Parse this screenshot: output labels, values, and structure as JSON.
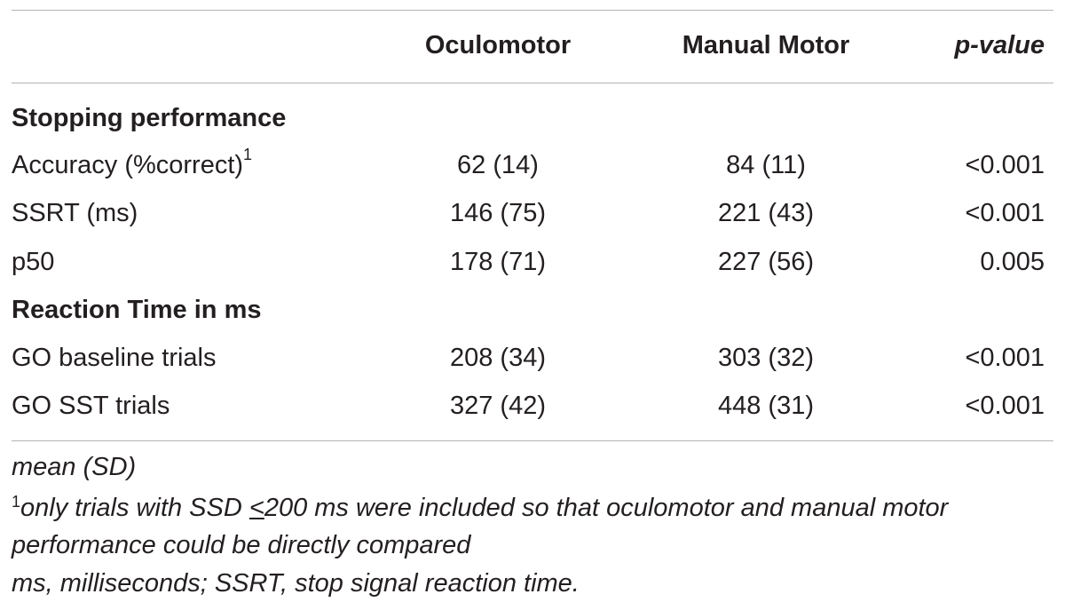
{
  "table": {
    "headers": {
      "col1": "",
      "oculomotor": "Oculomotor",
      "manual_motor": "Manual Motor",
      "p_value": "p-value"
    },
    "sections": [
      {
        "title": "Stopping performance",
        "rows": [
          {
            "label": "Accuracy (%correct)",
            "sup": "1",
            "oculomotor": "62 (14)",
            "manual_motor": "84 (11)",
            "p_value": "<0.001"
          },
          {
            "label": "SSRT (ms)",
            "sup": "",
            "oculomotor": "146 (75)",
            "manual_motor": "221 (43)",
            "p_value": "<0.001"
          },
          {
            "label": "p50",
            "sup": "",
            "oculomotor": "178 (71)",
            "manual_motor": "227 (56)",
            "p_value": "0.005"
          }
        ]
      },
      {
        "title": "Reaction Time in ms",
        "rows": [
          {
            "label": "GO baseline trials",
            "sup": "",
            "oculomotor": "208 (34)",
            "manual_motor": "303 (32)",
            "p_value": "<0.001"
          },
          {
            "label": "GO SST trials",
            "sup": "",
            "oculomotor": "327 (42)",
            "manual_motor": "448 (31)",
            "p_value": "<0.001"
          }
        ]
      }
    ]
  },
  "footnotes": {
    "line1": "mean (SD)",
    "line2_sup": "1",
    "line2_pre": "only trials with SSD ",
    "line2_ul": "<",
    "line2_post": "200 ms were included so that oculomotor and manual motor",
    "line3": "performance could be directly compared",
    "line4": "ms, milliseconds; SSRT, stop signal reaction time."
  }
}
